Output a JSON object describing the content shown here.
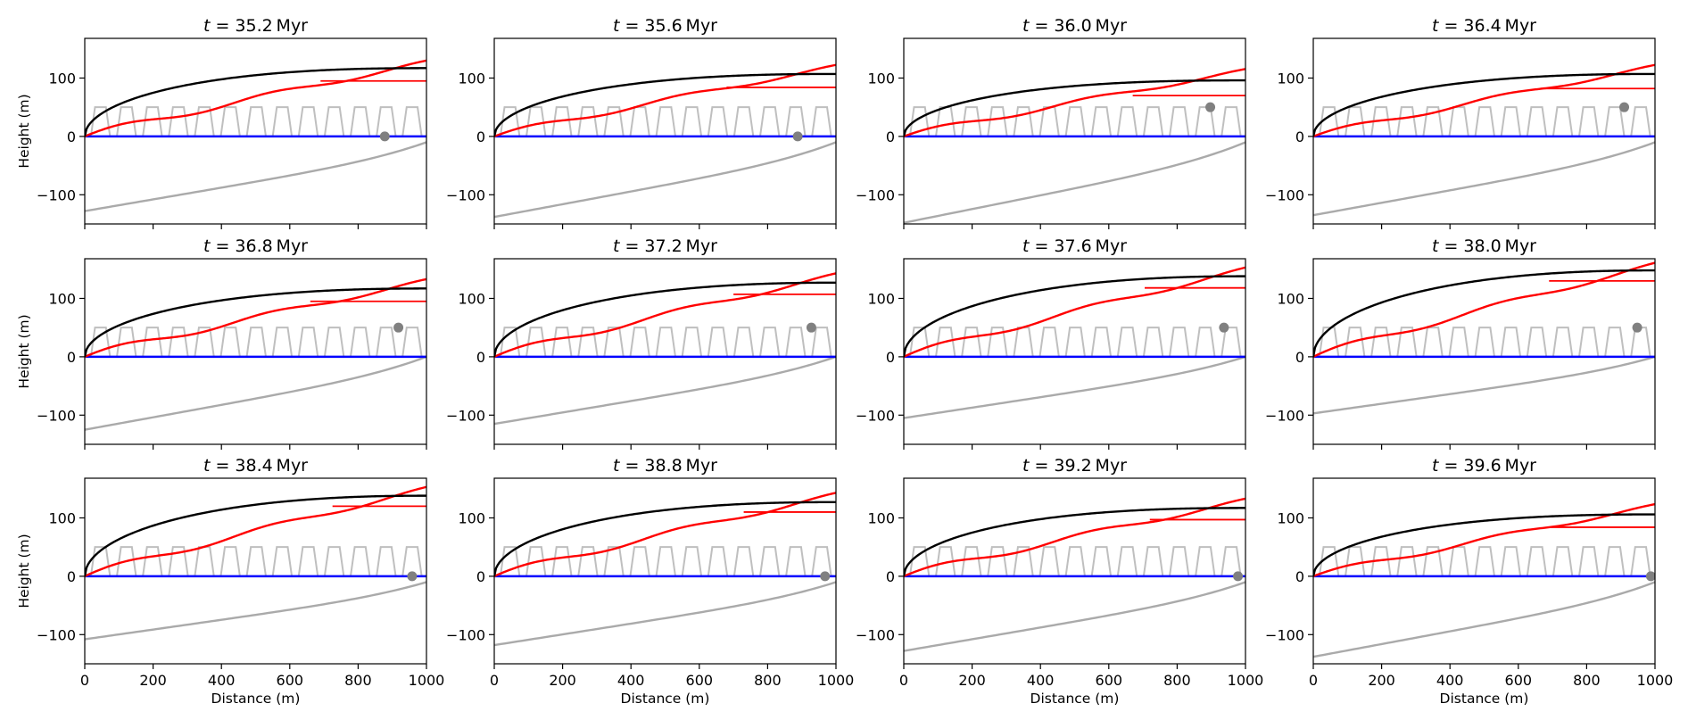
{
  "figure": {
    "xlabel": "Distance (m)",
    "ylabel": "Height (m)",
    "title_prefix": "t",
    "title_unit": "Myr",
    "xticks": [
      0,
      200,
      400,
      600,
      800,
      1000
    ],
    "yticks": [
      -100,
      0,
      100
    ],
    "xlim": [
      0,
      1000
    ],
    "ylim": [
      -150,
      168
    ],
    "grid": false,
    "legend": "none",
    "colors": {
      "black_curve": "#000000",
      "red_curve": "#ff0000",
      "blue_line": "#0000ff",
      "gray_pattern": "#bfbfbf",
      "gray_bed": "#aaaaaa",
      "marker": "#808080"
    }
  },
  "chart_data": [
    {
      "type": "line",
      "title": "t = 35.2 Myr",
      "time": 35.2,
      "black_end": 117,
      "black_power": 0.55,
      "red_end": 127,
      "red_wiggle": 6,
      "red_flat_y": 95,
      "red_flat_from": 690,
      "bed_start": -128,
      "bed_end": -10,
      "marker": [
        878,
        0
      ]
    },
    {
      "type": "line",
      "title": "t = 35.6 Myr",
      "time": 35.6,
      "black_end": 107,
      "black_power": 0.55,
      "red_end": 120,
      "red_wiggle": 5,
      "red_flat_y": 84,
      "red_flat_from": 680,
      "bed_start": -138,
      "bed_end": -10,
      "marker": [
        888,
        0
      ]
    },
    {
      "type": "line",
      "title": "t = 36.0 Myr",
      "time": 36.0,
      "black_end": 96,
      "black_power": 0.6,
      "red_end": 113,
      "red_wiggle": 5,
      "red_flat_y": 70,
      "red_flat_from": 670,
      "bed_start": -148,
      "bed_end": -10,
      "marker": [
        897,
        50
      ]
    },
    {
      "type": "line",
      "title": "t = 36.4 Myr",
      "time": 36.4,
      "black_end": 107,
      "black_power": 0.5,
      "red_end": 120,
      "red_wiggle": 5,
      "red_flat_y": 82,
      "red_flat_from": 665,
      "bed_start": -135,
      "bed_end": -10,
      "marker": [
        910,
        50
      ]
    },
    {
      "type": "line",
      "title": "t = 36.8 Myr",
      "time": 36.8,
      "black_end": 117,
      "black_power": 0.45,
      "red_end": 130,
      "red_wiggle": 6,
      "red_flat_y": 95,
      "red_flat_from": 660,
      "bed_start": -125,
      "bed_end": 0,
      "marker": [
        918,
        50
      ]
    },
    {
      "type": "line",
      "title": "t = 37.2 Myr",
      "time": 37.2,
      "black_end": 127,
      "black_power": 0.45,
      "red_end": 140,
      "red_wiggle": 6,
      "red_flat_y": 107,
      "red_flat_from": 700,
      "bed_start": -115,
      "bed_end": 0,
      "marker": [
        928,
        50
      ]
    },
    {
      "type": "line",
      "title": "t = 37.6 Myr",
      "time": 37.6,
      "black_end": 138,
      "black_power": 0.45,
      "red_end": 150,
      "red_wiggle": 6,
      "red_flat_y": 118,
      "red_flat_from": 705,
      "bed_start": -105,
      "bed_end": 0,
      "marker": [
        937,
        50
      ]
    },
    {
      "type": "line",
      "title": "t = 38.0 Myr",
      "time": 38.0,
      "black_end": 148,
      "black_power": 0.45,
      "red_end": 158,
      "red_wiggle": 6,
      "red_flat_y": 130,
      "red_flat_from": 690,
      "bed_start": -97,
      "bed_end": 0,
      "marker": [
        948,
        50
      ]
    },
    {
      "type": "line",
      "title": "t = 38.4 Myr",
      "time": 38.4,
      "black_end": 138,
      "black_power": 0.45,
      "red_end": 150,
      "red_wiggle": 6,
      "red_flat_y": 120,
      "red_flat_from": 725,
      "bed_start": -108,
      "bed_end": -10,
      "marker": [
        958,
        0
      ]
    },
    {
      "type": "line",
      "title": "t = 38.8 Myr",
      "time": 38.8,
      "black_end": 127,
      "black_power": 0.5,
      "red_end": 140,
      "red_wiggle": 6,
      "red_flat_y": 110,
      "red_flat_from": 730,
      "bed_start": -118,
      "bed_end": -10,
      "marker": [
        968,
        0
      ]
    },
    {
      "type": "line",
      "title": "t = 39.2 Myr",
      "time": 39.2,
      "black_end": 117,
      "black_power": 0.55,
      "red_end": 130,
      "red_wiggle": 6,
      "red_flat_y": 97,
      "red_flat_from": 720,
      "bed_start": -128,
      "bed_end": -10,
      "marker": [
        978,
        0
      ]
    },
    {
      "type": "line",
      "title": "t = 39.6 Myr",
      "time": 39.6,
      "black_end": 106,
      "black_power": 0.55,
      "red_end": 121,
      "red_wiggle": 5,
      "red_flat_y": 84,
      "red_flat_from": 690,
      "bed_start": -138,
      "bed_end": -10,
      "marker": [
        988,
        0
      ]
    }
  ]
}
